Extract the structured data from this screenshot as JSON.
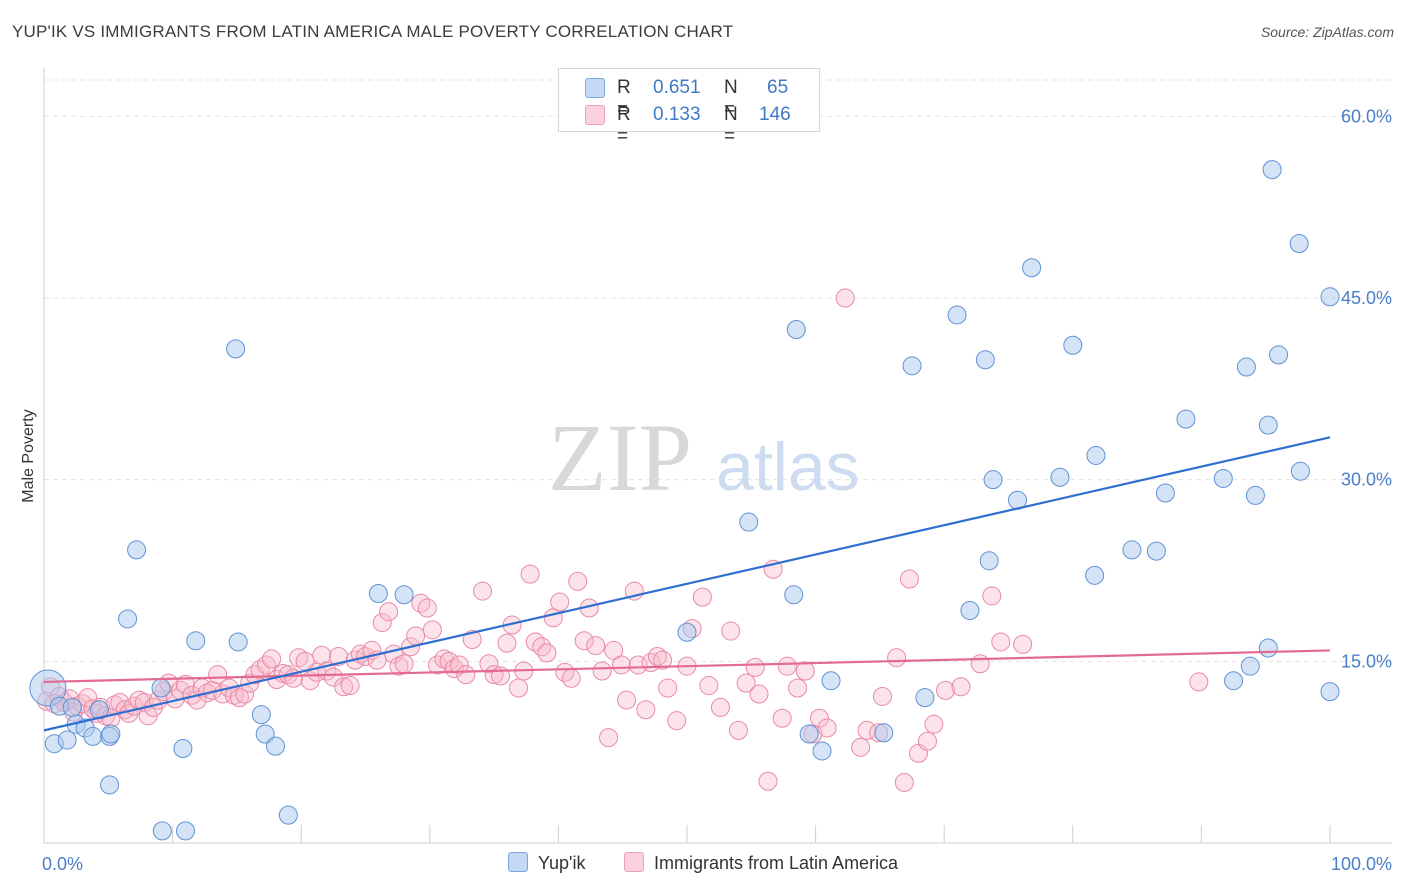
{
  "title": "YUP'IK VS IMMIGRANTS FROM LATIN AMERICA MALE POVERTY CORRELATION CHART",
  "source": "Source: ZipAtlas.com",
  "watermark": {
    "zip": "ZIP",
    "atlas": "atlas"
  },
  "legend": {
    "r_label": "R =",
    "n_label": "N =",
    "rows": [
      {
        "r": "0.651",
        "n": "65",
        "color": "#a9c8ee"
      },
      {
        "r": "0.133",
        "n": "146",
        "color": "#f7b9cb"
      }
    ]
  },
  "bottom_legend": [
    {
      "label": "Yup'ik",
      "color": "#a9c8ee"
    },
    {
      "label": "Immigrants from Latin America",
      "color": "#f7b9cb"
    }
  ],
  "chart_data": {
    "type": "scatter",
    "title": "YUP'IK VS IMMIGRANTS FROM LATIN AMERICA MALE POVERTY CORRELATION CHART",
    "xlabel": "",
    "ylabel": "Male Poverty",
    "xlim": [
      0,
      100
    ],
    "ylim": [
      0,
      63
    ],
    "x_tick_labels": [
      "0.0%",
      "100.0%"
    ],
    "y_ticks": [
      15,
      30,
      45,
      60
    ],
    "y_tick_labels": [
      "15.0%",
      "30.0%",
      "45.0%",
      "60.0%"
    ],
    "grid": true,
    "series": [
      {
        "name": "Yup'ik",
        "color": "#5f93d4",
        "trend": {
          "x": [
            0,
            100
          ],
          "y": [
            9.3,
            33.5
          ],
          "color": "#2f6fd0"
        },
        "points": [
          [
            0.3,
            12.8
          ],
          [
            0.8,
            8.2
          ],
          [
            1.2,
            11.3
          ],
          [
            1.8,
            8.5
          ],
          [
            2.2,
            11.2
          ],
          [
            2.5,
            9.8
          ],
          [
            3.2,
            9.5
          ],
          [
            3.8,
            8.8
          ],
          [
            4.3,
            11.0
          ],
          [
            5.1,
            8.8
          ],
          [
            5.2,
            9.0
          ],
          [
            5.1,
            4.8
          ],
          [
            6.5,
            18.5
          ],
          [
            7.2,
            24.2
          ],
          [
            9.2,
            1.0
          ],
          [
            9.1,
            12.8
          ],
          [
            10.8,
            7.8
          ],
          [
            11.0,
            1.0
          ],
          [
            11.8,
            16.7
          ],
          [
            14.9,
            40.8
          ],
          [
            15.1,
            16.6
          ],
          [
            16.9,
            10.6
          ],
          [
            17.2,
            9.0
          ],
          [
            18.0,
            8.0
          ],
          [
            19.0,
            2.3
          ],
          [
            26.0,
            20.6
          ],
          [
            28.0,
            20.5
          ],
          [
            50.0,
            17.4
          ],
          [
            54.8,
            26.5
          ],
          [
            58.5,
            42.4
          ],
          [
            58.3,
            20.5
          ],
          [
            59.5,
            9.0
          ],
          [
            60.5,
            7.6
          ],
          [
            61.2,
            13.4
          ],
          [
            65.3,
            9.1
          ],
          [
            67.5,
            39.4
          ],
          [
            68.5,
            12.0
          ],
          [
            71.0,
            43.6
          ],
          [
            72.0,
            19.2
          ],
          [
            73.2,
            39.9
          ],
          [
            73.5,
            23.3
          ],
          [
            73.8,
            30.0
          ],
          [
            75.7,
            28.3
          ],
          [
            76.8,
            47.5
          ],
          [
            79.0,
            30.2
          ],
          [
            80.0,
            41.1
          ],
          [
            81.7,
            22.1
          ],
          [
            81.8,
            32.0
          ],
          [
            84.6,
            24.2
          ],
          [
            86.5,
            24.1
          ],
          [
            87.2,
            28.9
          ],
          [
            88.8,
            35.0
          ],
          [
            91.7,
            30.1
          ],
          [
            92.5,
            13.4
          ],
          [
            93.8,
            14.6
          ],
          [
            93.5,
            39.3
          ],
          [
            94.2,
            28.7
          ],
          [
            95.2,
            34.5
          ],
          [
            95.5,
            55.6
          ],
          [
            95.2,
            16.1
          ],
          [
            96.0,
            40.3
          ],
          [
            97.6,
            49.5
          ],
          [
            97.7,
            30.7
          ],
          [
            100.0,
            12.5
          ],
          [
            100.0,
            45.1
          ]
        ]
      },
      {
        "name": "Immigrants from Latin America",
        "color": "#e98aa7",
        "trend": {
          "x": [
            0,
            100
          ],
          "y": [
            13.3,
            15.9
          ],
          "color": "#e36a93"
        },
        "points": [
          [
            0.2,
            11.7
          ],
          [
            0.5,
            12.9
          ],
          [
            0.8,
            11.5
          ],
          [
            1.2,
            12.1
          ],
          [
            1.6,
            11.6
          ],
          [
            2.0,
            11.9
          ],
          [
            2.3,
            10.8
          ],
          [
            2.6,
            11.3
          ],
          [
            3.0,
            11.5
          ],
          [
            3.4,
            12.0
          ],
          [
            3.8,
            11.1
          ],
          [
            4.1,
            10.7
          ],
          [
            4.4,
            11.2
          ],
          [
            4.8,
            10.5
          ],
          [
            5.2,
            10.3
          ],
          [
            5.5,
            11.4
          ],
          [
            5.9,
            11.6
          ],
          [
            6.3,
            11.0
          ],
          [
            6.6,
            10.7
          ],
          [
            7.0,
            11.3
          ],
          [
            7.4,
            11.8
          ],
          [
            7.8,
            11.6
          ],
          [
            8.1,
            10.5
          ],
          [
            8.5,
            11.2
          ],
          [
            8.9,
            11.8
          ],
          [
            9.3,
            12.5
          ],
          [
            9.7,
            13.2
          ],
          [
            10.2,
            11.9
          ],
          [
            10.6,
            12.6
          ],
          [
            11.0,
            13.1
          ],
          [
            11.5,
            12.2
          ],
          [
            11.9,
            11.8
          ],
          [
            12.3,
            12.8
          ],
          [
            12.7,
            12.4
          ],
          [
            13.1,
            12.6
          ],
          [
            13.5,
            13.9
          ],
          [
            13.9,
            12.3
          ],
          [
            14.4,
            12.8
          ],
          [
            14.8,
            12.2
          ],
          [
            15.2,
            12.0
          ],
          [
            15.6,
            12.3
          ],
          [
            16.0,
            13.2
          ],
          [
            16.4,
            13.9
          ],
          [
            16.8,
            14.3
          ],
          [
            17.3,
            14.7
          ],
          [
            17.7,
            15.2
          ],
          [
            18.1,
            13.5
          ],
          [
            18.6,
            14.0
          ],
          [
            19.0,
            13.9
          ],
          [
            19.4,
            13.6
          ],
          [
            19.8,
            15.3
          ],
          [
            20.3,
            15.0
          ],
          [
            20.7,
            13.4
          ],
          [
            21.2,
            14.1
          ],
          [
            21.6,
            15.5
          ],
          [
            22.0,
            14.2
          ],
          [
            22.5,
            13.7
          ],
          [
            22.9,
            15.4
          ],
          [
            23.3,
            12.9
          ],
          [
            23.8,
            13.0
          ],
          [
            24.2,
            15.1
          ],
          [
            24.6,
            15.6
          ],
          [
            25.0,
            15.4
          ],
          [
            25.5,
            15.9
          ],
          [
            25.9,
            15.1
          ],
          [
            26.3,
            18.2
          ],
          [
            26.8,
            19.1
          ],
          [
            27.2,
            15.6
          ],
          [
            27.6,
            14.6
          ],
          [
            28.0,
            14.8
          ],
          [
            28.5,
            16.2
          ],
          [
            28.9,
            17.1
          ],
          [
            29.3,
            19.8
          ],
          [
            29.8,
            19.4
          ],
          [
            30.2,
            17.6
          ],
          [
            30.6,
            14.7
          ],
          [
            31.1,
            15.2
          ],
          [
            31.5,
            15.0
          ],
          [
            31.9,
            14.4
          ],
          [
            32.3,
            14.7
          ],
          [
            32.8,
            13.9
          ],
          [
            33.3,
            16.8
          ],
          [
            34.1,
            20.8
          ],
          [
            34.6,
            14.8
          ],
          [
            35.0,
            13.9
          ],
          [
            35.5,
            13.8
          ],
          [
            36.0,
            16.5
          ],
          [
            36.4,
            18.0
          ],
          [
            36.9,
            12.8
          ],
          [
            37.3,
            14.2
          ],
          [
            37.8,
            22.2
          ],
          [
            38.2,
            16.6
          ],
          [
            38.7,
            16.2
          ],
          [
            39.1,
            15.7
          ],
          [
            39.6,
            18.6
          ],
          [
            40.1,
            19.9
          ],
          [
            40.5,
            14.1
          ],
          [
            41.0,
            13.6
          ],
          [
            41.5,
            21.6
          ],
          [
            42.0,
            16.7
          ],
          [
            42.4,
            19.4
          ],
          [
            42.9,
            16.3
          ],
          [
            43.4,
            14.2
          ],
          [
            43.9,
            8.7
          ],
          [
            44.3,
            15.9
          ],
          [
            44.9,
            14.7
          ],
          [
            45.3,
            11.8
          ],
          [
            45.9,
            20.8
          ],
          [
            46.2,
            14.7
          ],
          [
            46.8,
            11.0
          ],
          [
            47.2,
            14.9
          ],
          [
            47.7,
            15.4
          ],
          [
            48.1,
            15.1
          ],
          [
            48.5,
            12.8
          ],
          [
            49.2,
            10.1
          ],
          [
            50.0,
            14.6
          ],
          [
            50.4,
            17.7
          ],
          [
            51.2,
            20.3
          ],
          [
            51.7,
            13.0
          ],
          [
            52.6,
            11.2
          ],
          [
            53.4,
            17.5
          ],
          [
            54.0,
            9.3
          ],
          [
            54.6,
            13.2
          ],
          [
            55.3,
            14.5
          ],
          [
            55.6,
            12.3
          ],
          [
            56.3,
            5.1
          ],
          [
            56.7,
            22.6
          ],
          [
            57.4,
            10.3
          ],
          [
            57.8,
            14.6
          ],
          [
            58.6,
            12.8
          ],
          [
            59.2,
            14.2
          ],
          [
            59.8,
            9.0
          ],
          [
            60.3,
            10.3
          ],
          [
            60.9,
            9.5
          ],
          [
            62.3,
            45.0
          ],
          [
            63.5,
            7.9
          ],
          [
            64.0,
            9.3
          ],
          [
            64.9,
            9.1
          ],
          [
            65.2,
            12.1
          ],
          [
            66.3,
            15.3
          ],
          [
            66.9,
            5.0
          ],
          [
            67.3,
            21.8
          ],
          [
            68.0,
            7.4
          ],
          [
            68.7,
            8.4
          ],
          [
            69.2,
            9.8
          ],
          [
            70.1,
            12.6
          ],
          [
            71.3,
            12.9
          ],
          [
            72.8,
            14.8
          ],
          [
            73.7,
            20.4
          ],
          [
            74.4,
            16.6
          ],
          [
            76.1,
            16.4
          ],
          [
            89.8,
            13.3
          ]
        ]
      }
    ]
  }
}
